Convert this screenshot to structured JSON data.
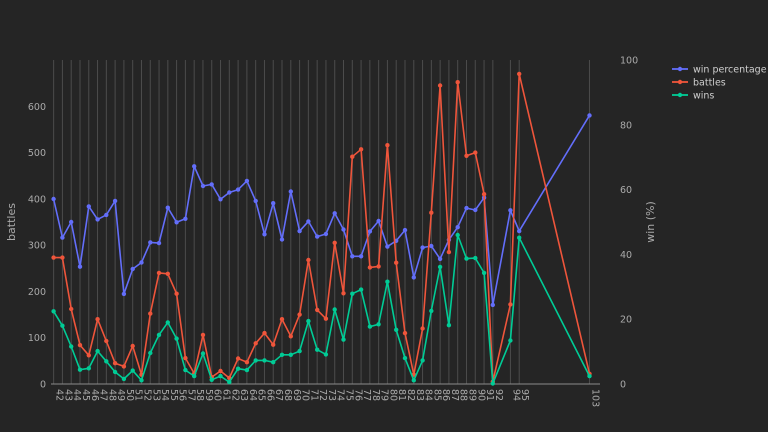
{
  "chart_data": {
    "type": "line",
    "x_categories": [
      "42",
      "43",
      "44",
      "45",
      "46",
      "47",
      "48",
      "49",
      "50",
      "51",
      "52",
      "53",
      "54",
      "55",
      "56",
      "57",
      "58",
      "59",
      "60",
      "61",
      "62",
      "63",
      "64",
      "65",
      "66",
      "67",
      "68",
      "69",
      "70",
      "71",
      "72",
      "73",
      "74",
      "75",
      "76",
      "77",
      "78",
      "79",
      "80",
      "81",
      "82",
      "83",
      "84",
      "85",
      "86",
      "87",
      "88",
      "89",
      "90",
      "91",
      "92",
      "94",
      "95",
      "103"
    ],
    "ylabel_left": "battles",
    "ylabel_right": "win (%)",
    "ylim_left": [
      0,
      700
    ],
    "ylim_right": [
      0,
      100
    ],
    "left_ticks": [
      "0",
      "100",
      "200",
      "300",
      "400",
      "500",
      "600"
    ],
    "right_ticks": [
      "0",
      "20",
      "40",
      "60",
      "80",
      "100"
    ],
    "grid": "vertical",
    "legend_position": "top-right",
    "series": [
      {
        "name": "win percentage",
        "axis": "right",
        "color": "#636efa",
        "values": [
          57.1,
          45.2,
          50.0,
          36.2,
          54.8,
          50.8,
          52.2,
          56.5,
          27.8,
          35.5,
          37.5,
          43.7,
          43.5,
          54.4,
          49.9,
          51.0,
          67.2,
          61.1,
          61.6,
          57.0,
          59.1,
          60.0,
          62.7,
          56.5,
          46.2,
          55.8,
          44.6,
          59.4,
          47.2,
          50.2,
          45.5,
          46.3,
          52.7,
          47.7,
          39.4,
          39.4,
          47.1,
          50.3,
          42.4,
          44.2,
          47.5,
          32.9,
          42.1,
          42.6,
          38.6,
          44.5,
          48.4,
          54.3,
          53.7,
          57.5,
          24.4,
          53.6,
          47.2,
          82.9
        ]
      },
      {
        "name": "battles",
        "axis": "left",
        "color": "#ef553b",
        "values": [
          273,
          273,
          162,
          84,
          62,
          140,
          93,
          45,
          38,
          82,
          20,
          152,
          240,
          238,
          195,
          56,
          23,
          106,
          15,
          28,
          13,
          55,
          47,
          88,
          110,
          85,
          140,
          103,
          150,
          268,
          160,
          141,
          305,
          196,
          491,
          507,
          252,
          254,
          516,
          262,
          110,
          20,
          120,
          370,
          645,
          285,
          652,
          493,
          500,
          410,
          5,
          172,
          670,
          22
        ]
      },
      {
        "name": "wins",
        "axis": "left",
        "color": "#00cc96",
        "values": [
          157,
          126,
          81,
          31,
          34,
          71,
          49,
          26,
          11,
          29,
          8,
          67,
          106,
          133,
          98,
          30,
          17,
          66,
          9,
          17,
          4,
          33,
          30,
          51,
          51,
          47,
          63,
          63,
          71,
          136,
          74,
          64,
          161,
          96,
          195,
          204,
          124,
          129,
          221,
          117,
          56,
          8,
          51,
          158,
          253,
          127,
          322,
          271,
          272,
          240,
          1,
          94,
          316,
          17
        ]
      }
    ]
  }
}
